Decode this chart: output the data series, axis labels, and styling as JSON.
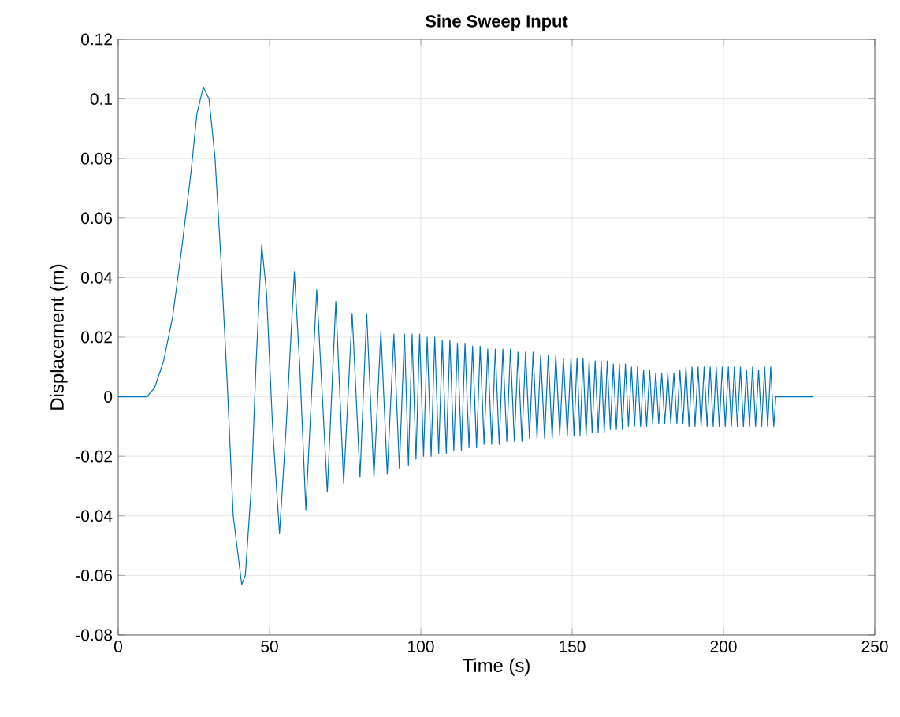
{
  "chart_data": {
    "type": "line",
    "title": "Sine Sweep Input",
    "xlabel": "Time (s)",
    "ylabel": "Displacement (m)",
    "xlim": [
      0,
      250
    ],
    "ylim": [
      -0.08,
      0.12
    ],
    "xticks": [
      0,
      50,
      100,
      150,
      200,
      250
    ],
    "yticks": [
      -0.08,
      -0.06,
      -0.04,
      -0.02,
      0,
      0.02,
      0.04,
      0.06,
      0.08,
      0.1,
      0.12
    ],
    "grid": true,
    "line_style": "solid",
    "marker": "none",
    "series": [
      {
        "color": "#0072bd",
        "x": [
          0,
          9.5,
          12,
          15,
          18,
          21,
          24,
          26,
          28.1,
          30,
          32,
          34,
          36,
          38,
          40.8,
          42,
          44,
          45.5,
          47.4,
          49,
          51,
          53.3,
          55.5,
          58.2,
          60,
          62,
          65.6,
          69.1,
          71.9,
          74.5,
          77.3,
          79.9,
          82.1,
          84.5,
          86.8,
          88.9,
          91.1,
          92.9,
          94.6,
          95.9,
          97.1,
          98.4,
          99.6,
          100.9,
          102.1,
          103.4,
          104.6,
          105.9,
          107.1,
          108.4,
          109.6,
          110.9,
          112.1,
          113.4,
          114.6,
          115.9,
          117.1,
          118.4,
          119.6,
          120.9,
          122.1,
          123.4,
          124.6,
          125.9,
          127.1,
          128.4,
          129.6,
          130.9,
          132.1,
          133.4,
          134.6,
          135.9,
          137.1,
          138.4,
          139.6,
          140.9,
          142.1,
          143.4,
          144.6,
          145.9,
          147.1,
          148.4,
          149.6,
          150.6,
          151.6,
          152.6,
          153.6,
          154.6,
          155.6,
          156.6,
          157.6,
          158.6,
          159.6,
          160.6,
          161.6,
          162.6,
          163.6,
          164.6,
          165.6,
          166.6,
          167.6,
          168.6,
          169.6,
          170.6,
          171.6,
          172.6,
          173.6,
          174.6,
          175.6,
          176.6,
          177.6,
          178.6,
          179.6,
          180.6,
          181.6,
          182.6,
          183.6,
          184.6,
          185.6,
          186.6,
          187.6,
          188.6,
          189.6,
          190.6,
          191.6,
          192.6,
          193.6,
          194.6,
          195.6,
          196.6,
          197.6,
          198.6,
          199.6,
          200.6,
          201.6,
          202.6,
          203.6,
          204.6,
          205.6,
          206.6,
          207.6,
          208.6,
          209.6,
          210.6,
          211.6,
          212.6,
          213.6,
          214.6,
          215.6,
          216.6,
          217.3,
          229.7
        ],
        "values": [
          0,
          0,
          0.003,
          0.012,
          0.027,
          0.05,
          0.075,
          0.095,
          0.104,
          0.1,
          0.08,
          0.045,
          0.005,
          -0.04,
          -0.063,
          -0.06,
          -0.03,
          0.01,
          0.051,
          0.035,
          -0.01,
          -0.046,
          -0.01,
          0.042,
          0.01,
          -0.038,
          0.036,
          -0.032,
          0.032,
          -0.029,
          0.028,
          -0.027,
          0.028,
          -0.027,
          0.022,
          -0.026,
          0.021,
          -0.024,
          0.021,
          -0.023,
          0.021,
          -0.021,
          0.021,
          -0.02,
          0.02,
          -0.02,
          0.02,
          -0.019,
          0.019,
          -0.019,
          0.019,
          -0.018,
          0.018,
          -0.018,
          0.018,
          -0.017,
          0.017,
          -0.017,
          0.017,
          -0.016,
          0.016,
          -0.016,
          0.016,
          -0.016,
          0.016,
          -0.015,
          0.016,
          -0.015,
          0.015,
          -0.015,
          0.015,
          -0.014,
          0.015,
          -0.014,
          0.014,
          -0.014,
          0.014,
          -0.014,
          0.014,
          -0.013,
          0.013,
          -0.013,
          0.013,
          -0.013,
          0.013,
          -0.013,
          0.013,
          -0.013,
          0.012,
          -0.012,
          0.012,
          -0.012,
          0.012,
          -0.012,
          0.012,
          -0.011,
          0.011,
          -0.011,
          0.011,
          -0.011,
          0.011,
          -0.01,
          0.01,
          -0.01,
          0.01,
          -0.01,
          0.009,
          -0.01,
          0.009,
          -0.009,
          0.008,
          -0.009,
          0.008,
          -0.009,
          0.008,
          -0.009,
          0.008,
          -0.009,
          0.009,
          -0.009,
          0.01,
          -0.01,
          0.01,
          -0.01,
          0.01,
          -0.01,
          0.01,
          -0.01,
          0.01,
          -0.01,
          0.01,
          -0.01,
          0.01,
          -0.01,
          0.01,
          -0.01,
          0.01,
          -0.01,
          0.01,
          -0.01,
          0.009,
          -0.01,
          0.01,
          -0.01,
          0.009,
          -0.01,
          0.01,
          -0.01,
          0.01,
          -0.01,
          0,
          0
        ]
      }
    ]
  }
}
